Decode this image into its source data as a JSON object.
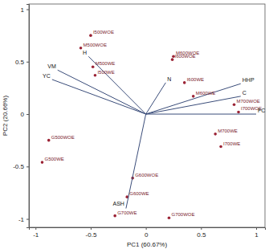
{
  "chart_data": {
    "type": "biplot",
    "x_label": "PC1 (60.67%)",
    "y_label": "PC2 (20.66%)",
    "xlim": [
      -1.06,
      1.08
    ],
    "ylim": [
      -1.08,
      1.05
    ],
    "xticks": [
      -1,
      -0.5,
      0,
      0.5,
      1
    ],
    "yticks": [
      -1,
      -0.5,
      0,
      0.5,
      1
    ],
    "series": [
      {
        "type": "scatter",
        "color": "#9b2335",
        "marker": "circle",
        "labels": [
          "I500WOE",
          "M500WOE",
          "M500WE",
          "I500WE",
          "M600WOE",
          "I600WOE",
          "I600WE",
          "M600WE",
          "M700WOE",
          "I700WOE",
          "M700WE",
          "I700WE",
          "G500WOE",
          "G500WE",
          "G600WOE",
          "G600WE",
          "G700WE",
          "G700WOE"
        ],
        "x": [
          -0.5,
          -0.59,
          -0.48,
          -0.46,
          0.25,
          0.24,
          0.35,
          0.43,
          0.8,
          0.84,
          0.63,
          0.68,
          -0.88,
          -0.94,
          -0.12,
          -0.17,
          -0.28,
          0.21
        ],
        "values": [
          0.75,
          0.63,
          0.45,
          0.37,
          0.55,
          0.52,
          0.3,
          0.17,
          0.09,
          0.02,
          -0.19,
          -0.31,
          -0.25,
          -0.46,
          -0.61,
          -0.79,
          -0.97,
          -0.99
        ]
      },
      {
        "type": "vector",
        "color": "#3b4d7a",
        "labels": [
          "H",
          "VM",
          "YC",
          "N",
          "HHP",
          "C",
          "FC",
          "ASH"
        ],
        "x": [
          -0.52,
          -0.8,
          -0.85,
          0.18,
          0.86,
          0.86,
          1.0,
          -0.18
        ],
        "values": [
          0.55,
          0.42,
          0.33,
          0.3,
          0.29,
          0.17,
          0.0,
          -0.9
        ]
      }
    ]
  }
}
